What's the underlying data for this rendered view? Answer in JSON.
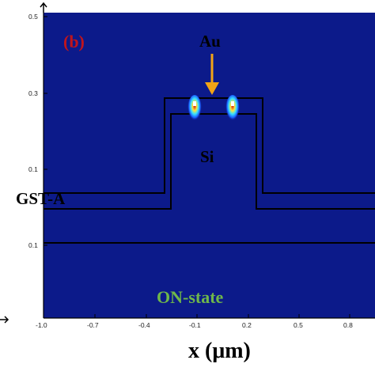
{
  "chart_data": {
    "type": "heatmap",
    "panel_label": "(b)",
    "xlabel": "x (μm)",
    "x_ticks": [
      "-1.0",
      "-0.7",
      "-0.4",
      "-0.1",
      "0.2",
      "0.5",
      "0.8"
    ],
    "y_ticks": [
      "0.5",
      "0.3",
      "0.1",
      "0.1"
    ],
    "annotations": {
      "au": "Au",
      "si": "Si",
      "gst": "GST-A",
      "state": "ON-state"
    },
    "hotspots": [
      {
        "x": -0.08,
        "y": 0.27,
        "intensity": 1.0
      },
      {
        "x": 0.13,
        "y": 0.27,
        "intensity": 0.85
      }
    ],
    "colors": {
      "background": "#0c1a8a",
      "outline": "#000000",
      "arrow": "#f2a416",
      "panel_label": "#c0141c",
      "state_label": "#6fb74a"
    }
  }
}
